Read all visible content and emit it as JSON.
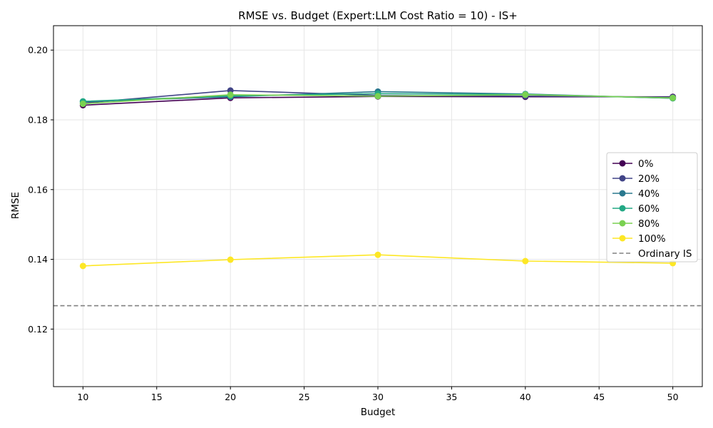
{
  "chart_data": {
    "type": "line",
    "title": "RMSE vs. Budget (Expert:LLM Cost Ratio = 10) - IS+",
    "xlabel": "Budget",
    "ylabel": "RMSE",
    "xlim": [
      8,
      52
    ],
    "ylim": [
      0.1035,
      0.207
    ],
    "xticks": [
      10,
      15,
      20,
      25,
      30,
      35,
      40,
      45,
      50
    ],
    "yticks": [
      0.12,
      0.14,
      0.16,
      0.18,
      0.2
    ],
    "ytick_labels": [
      "0.12",
      "0.14",
      "0.16",
      "0.18",
      "0.20"
    ],
    "grid": true,
    "legend_position": "center-right",
    "x": [
      10,
      20,
      30,
      40,
      50
    ],
    "series": [
      {
        "name": "0%",
        "color": "#440154",
        "values": [
          0.1842,
          0.1863,
          0.1867,
          0.1866,
          0.1866
        ]
      },
      {
        "name": "20%",
        "color": "#414487",
        "values": [
          0.1848,
          0.1884,
          0.187,
          0.1868,
          0.1865
        ]
      },
      {
        "name": "40%",
        "color": "#2a788e",
        "values": [
          0.1852,
          0.1866,
          0.1881,
          0.1874,
          0.1862
        ]
      },
      {
        "name": "60%",
        "color": "#22a884",
        "values": [
          0.1853,
          0.1869,
          0.1875,
          0.1873,
          0.1862
        ]
      },
      {
        "name": "80%",
        "color": "#7ad151",
        "values": [
          0.1846,
          0.1872,
          0.1868,
          0.1872,
          0.1863
        ]
      },
      {
        "name": "100%",
        "color": "#fde725",
        "values": [
          0.1381,
          0.1399,
          0.1413,
          0.1395,
          0.1389
        ]
      }
    ],
    "reference_line": {
      "name": "Ordinary IS",
      "value": 0.1267,
      "color": "#808080",
      "style": "dashed"
    }
  }
}
